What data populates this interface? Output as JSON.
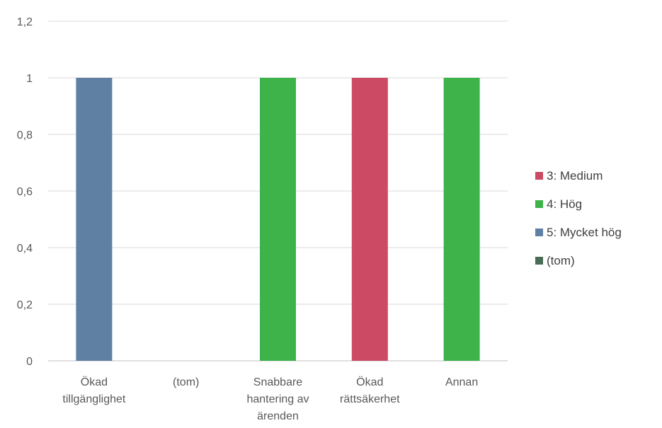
{
  "chart_data": {
    "type": "bar",
    "title": "",
    "xlabel": "",
    "ylabel": "",
    "categories": [
      [
        "Ökad",
        "tillgänglighet"
      ],
      [
        "(tom)"
      ],
      [
        "Snabbare",
        "hantering av",
        "ärenden"
      ],
      [
        "Ökad",
        "rättsäkerhet"
      ],
      [
        "Annan"
      ]
    ],
    "y_ticks": [
      "0",
      "0,2",
      "0,4",
      "0,6",
      "0,8",
      "1",
      "1,2"
    ],
    "ylim": [
      0,
      1.2
    ],
    "grid": true,
    "legend_position": "right",
    "series": [
      {
        "name": "3: Medium",
        "color": "#cc4a63",
        "values": [
          0,
          0,
          0,
          1,
          0
        ]
      },
      {
        "name": "4: Hög",
        "color": "#3db34a",
        "values": [
          0,
          0,
          1,
          0,
          1
        ]
      },
      {
        "name": "5: Mycket hög",
        "color": "#5f7fa3",
        "values": [
          1,
          0,
          0,
          0,
          0
        ]
      },
      {
        "name": "(tom)",
        "color": "#4a6b55",
        "values": [
          0,
          0,
          0,
          0,
          0
        ]
      }
    ]
  }
}
